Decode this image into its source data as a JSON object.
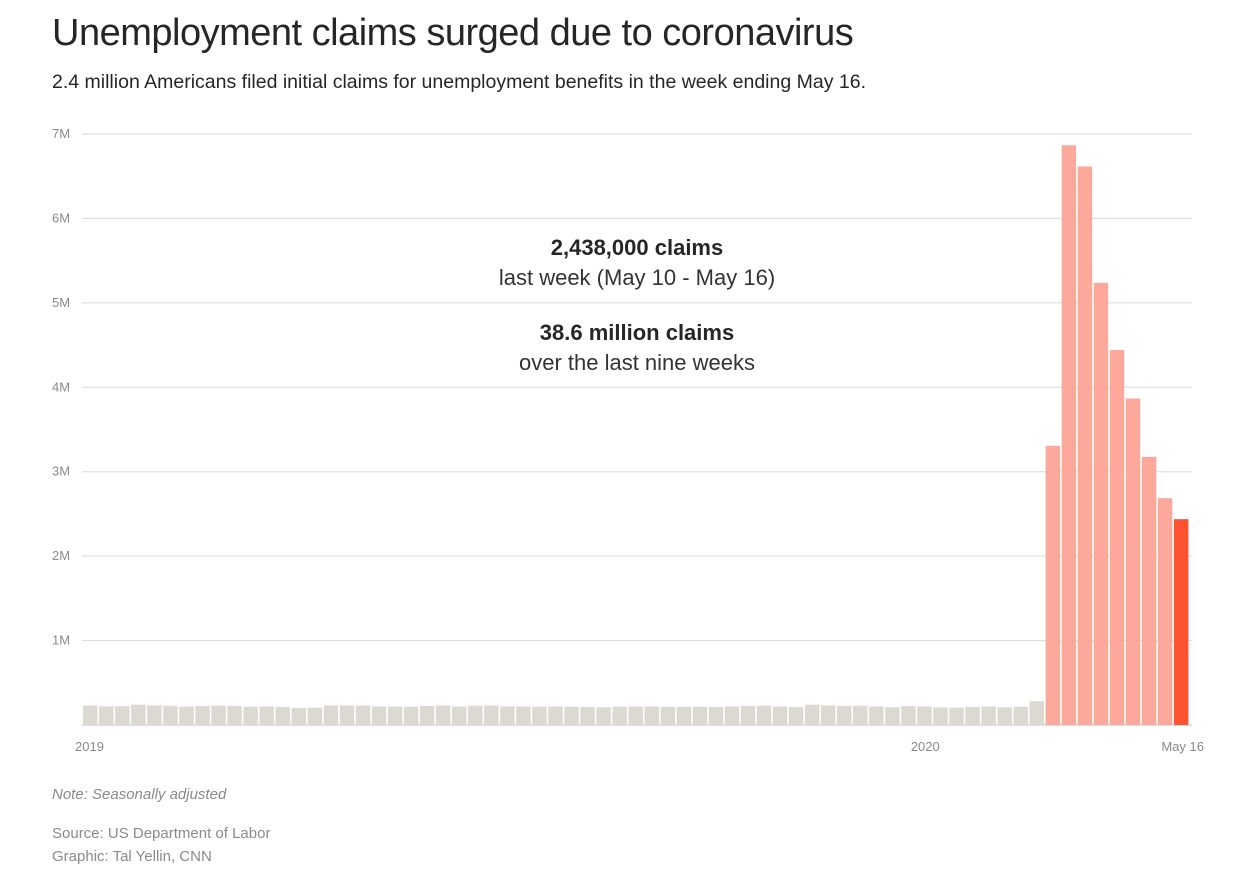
{
  "header": {
    "title": "Unemployment claims surged due to coronavirus",
    "subtitle": "2.4 million Americans filed initial claims for unemployment benefits in the week ending May 16."
  },
  "annotations": {
    "last_week_value": "2,438,000 claims",
    "last_week_label": "last week (May 10 - May 16)",
    "total_value": "38.6 million claims",
    "total_label": "over the last nine weeks"
  },
  "footer": {
    "note": "Note: Seasonally adjusted",
    "source": "Source: US Department of Labor",
    "credit": "Graphic: Tal Yellin, CNN"
  },
  "colors": {
    "normal_bar": "#dcd9d2",
    "surge_bar": "#fca99b",
    "latest_bar": "#ff5232",
    "gridline": "#dadada"
  },
  "chart_data": {
    "type": "bar",
    "ylim": [
      0,
      7000000
    ],
    "yticks": [
      {
        "value": 1000000,
        "label": "1M"
      },
      {
        "value": 2000000,
        "label": "2M"
      },
      {
        "value": 3000000,
        "label": "3M"
      },
      {
        "value": 4000000,
        "label": "4M"
      },
      {
        "value": 5000000,
        "label": "5M"
      },
      {
        "value": 6000000,
        "label": "6M"
      },
      {
        "value": 7000000,
        "label": "7M"
      }
    ],
    "xticks": [
      {
        "index": 0,
        "label": "2019"
      },
      {
        "index": 52,
        "label": "2020"
      },
      {
        "index": 71,
        "label": "May 16"
      }
    ],
    "values": [
      231000,
      222000,
      223000,
      240000,
      233000,
      227000,
      218000,
      224000,
      229000,
      226000,
      217000,
      219000,
      214000,
      203000,
      205000,
      231000,
      232000,
      230000,
      220000,
      219000,
      216000,
      225000,
      230000,
      219000,
      228000,
      231000,
      222000,
      218000,
      217000,
      221000,
      216000,
      214000,
      210000,
      217000,
      218000,
      219000,
      215000,
      215000,
      216000,
      214000,
      220000,
      226000,
      229000,
      218000,
      212000,
      240000,
      233000,
      226000,
      228000,
      220000,
      210000,
      224000,
      220000,
      207000,
      206000,
      214000,
      219000,
      210000,
      216000,
      282000,
      3307000,
      6867000,
      6615000,
      5237000,
      4442000,
      3867000,
      3176000,
      2687000,
      2438000
    ],
    "surge_start_index": 60,
    "latest_index": 68
  }
}
